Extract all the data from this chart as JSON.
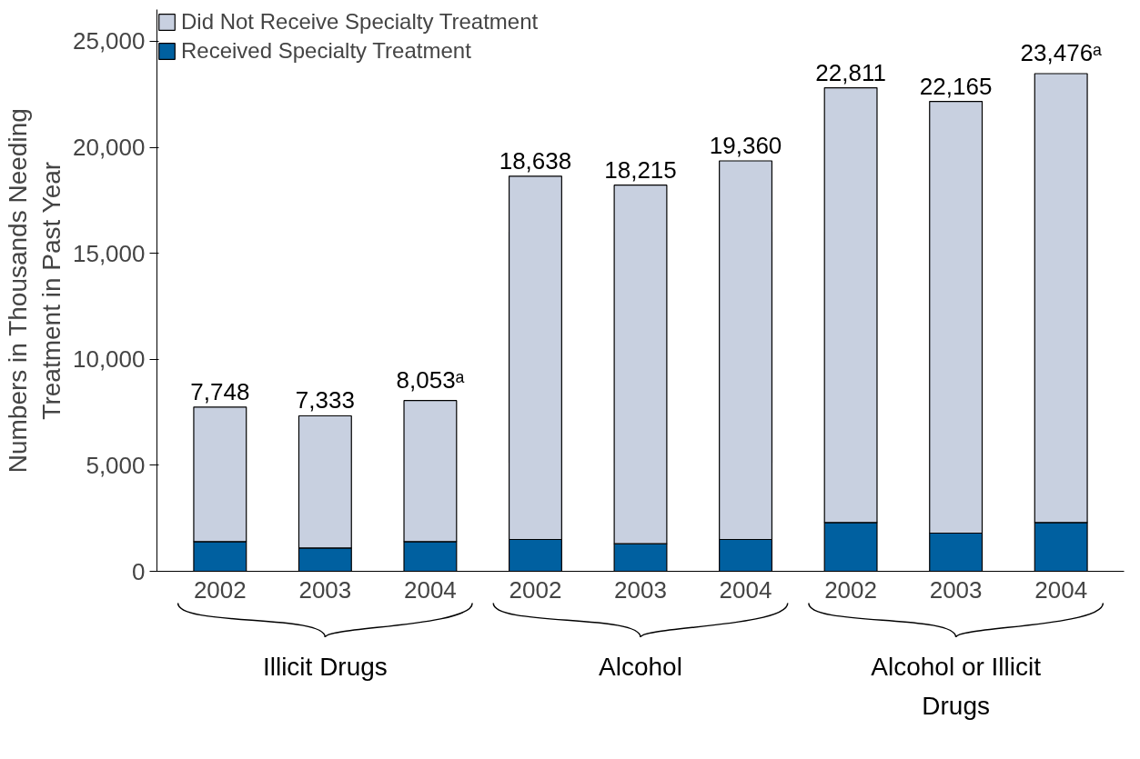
{
  "chart_data": {
    "type": "bar",
    "stacked": true,
    "ylabel": "Numbers in Thousands Needing Treatment in Past Year",
    "categories": [
      "2002",
      "2003",
      "2004",
      "2002",
      "2003",
      "2004",
      "2002",
      "2003",
      "2004"
    ],
    "series": [
      {
        "name": "Received Specialty Treatment",
        "color": "#0060a0",
        "values": [
          1400,
          1100,
          1400,
          1500,
          1300,
          1500,
          2300,
          1800,
          2300
        ]
      },
      {
        "name": "Did Not Receive Specialty Treatment",
        "color": "#c8d0e0",
        "values": [
          6348,
          6233,
          6653,
          17138,
          16915,
          17860,
          20511,
          20365,
          21176
        ]
      }
    ],
    "totals": [
      "7,748",
      "7,333",
      "8,053ᵃ",
      "18,638",
      "18,215",
      "19,360",
      "22,811",
      "22,165",
      "23,476ᵃ"
    ],
    "annotations": [
      "Illicit Drugs",
      "Alcohol",
      "Alcohol or Illicit Drugs"
    ],
    "ylim": [
      0,
      26500
    ],
    "yticks": [
      0,
      {
        "value": 5000,
        "label": "5,000"
      },
      {
        "value": 10000,
        "label": "10,000"
      },
      {
        "value": 15000,
        "label": "15,000"
      },
      {
        "value": 20000,
        "label": "20,000"
      },
      {
        "value": 25000,
        "label": "25,000"
      }
    ],
    "legend": "top left",
    "grid": false
  }
}
